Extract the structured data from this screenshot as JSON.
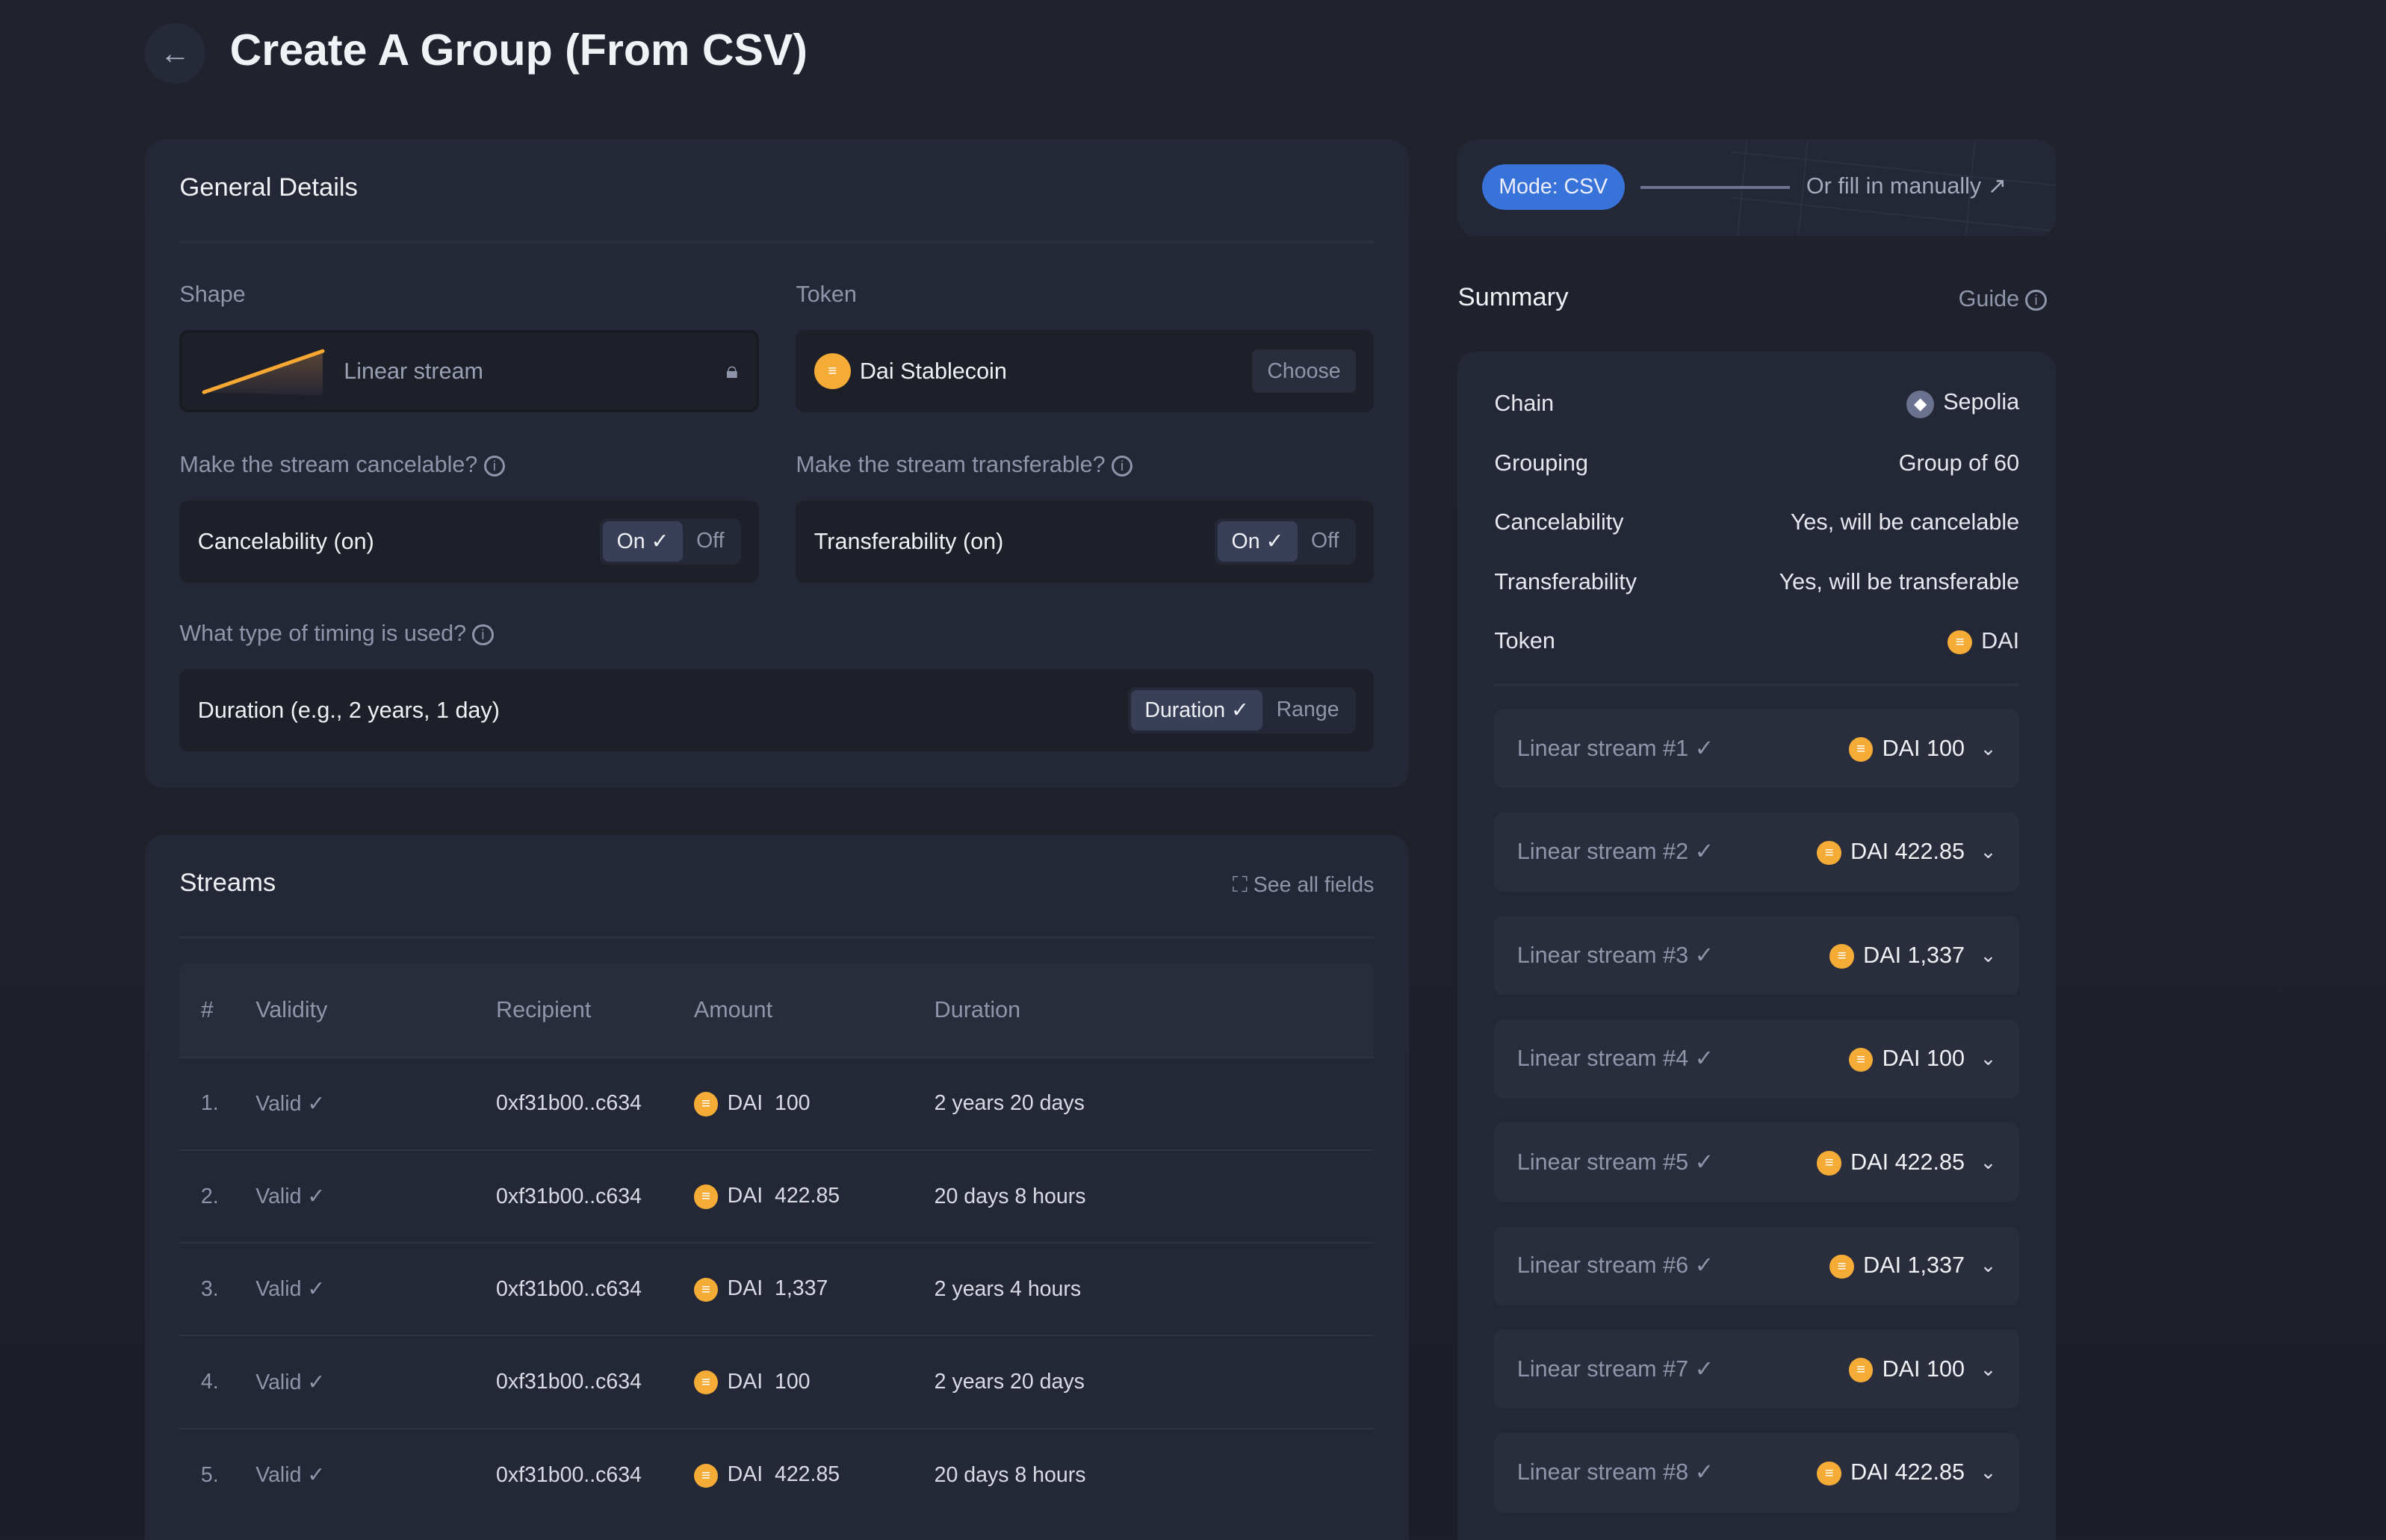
{
  "header": {
    "title": "Create A Group (From CSV)"
  },
  "general": {
    "title": "General Details",
    "shape_label": "Shape",
    "shape_value": "Linear stream",
    "token_label": "Token",
    "token_value": "Dai Stablecoin",
    "choose": "Choose",
    "cancel_q": "Make the stream cancelable?",
    "cancel_text": "Cancelability (on)",
    "transfer_q": "Make the stream transferable?",
    "transfer_text": "Transferability (on)",
    "on": "On",
    "off": "Off",
    "timing_q": "What type of timing is used?",
    "timing_text": "Duration (e.g., 2 years, 1 day)",
    "duration": "Duration",
    "range": "Range"
  },
  "streams": {
    "title": "Streams",
    "see_all": "See all fields",
    "columns": [
      "#",
      "Validity",
      "Recipient",
      "Amount",
      "Duration"
    ],
    "rows": [
      {
        "n": "1.",
        "valid": "Valid ✓",
        "recipient": "0xf31b00..c634",
        "amount": "DAI  100",
        "duration": "2 years 20 days"
      },
      {
        "n": "2.",
        "valid": "Valid ✓",
        "recipient": "0xf31b00..c634",
        "amount": "DAI  422.85",
        "duration": "20 days 8 hours"
      },
      {
        "n": "3.",
        "valid": "Valid ✓",
        "recipient": "0xf31b00..c634",
        "amount": "DAI  1,337",
        "duration": "2 years 4 hours"
      },
      {
        "n": "4.",
        "valid": "Valid ✓",
        "recipient": "0xf31b00..c634",
        "amount": "DAI  100",
        "duration": "2 years 20 days"
      },
      {
        "n": "5.",
        "valid": "Valid ✓",
        "recipient": "0xf31b00..c634",
        "amount": "DAI  422.85",
        "duration": "20 days 8 hours"
      }
    ]
  },
  "mode": {
    "badge": "Mode: CSV",
    "manual": "Or fill in manually"
  },
  "summary": {
    "title": "Summary",
    "guide": "Guide",
    "rows": [
      {
        "k": "Chain",
        "v": "Sepolia"
      },
      {
        "k": "Grouping",
        "v": "Group of 60"
      },
      {
        "k": "Cancelability",
        "v": "Yes, will be cancelable"
      },
      {
        "k": "Transferability",
        "v": "Yes, will be transferable"
      },
      {
        "k": "Token",
        "v": "DAI"
      }
    ],
    "streams": [
      {
        "name": "Linear stream #1 ✓",
        "amount": "DAI 100"
      },
      {
        "name": "Linear stream #2 ✓",
        "amount": "DAI 422.85"
      },
      {
        "name": "Linear stream #3 ✓",
        "amount": "DAI 1,337"
      },
      {
        "name": "Linear stream #4 ✓",
        "amount": "DAI 100"
      },
      {
        "name": "Linear stream #5 ✓",
        "amount": "DAI 422.85"
      },
      {
        "name": "Linear stream #6 ✓",
        "amount": "DAI 1,337"
      },
      {
        "name": "Linear stream #7 ✓",
        "amount": "DAI 100"
      },
      {
        "name": "Linear stream #8 ✓",
        "amount": "DAI 422.85"
      }
    ]
  },
  "colors": {
    "accent": "#3873d9",
    "dai": "#f5ac37",
    "stream_line": "#f7a833"
  }
}
